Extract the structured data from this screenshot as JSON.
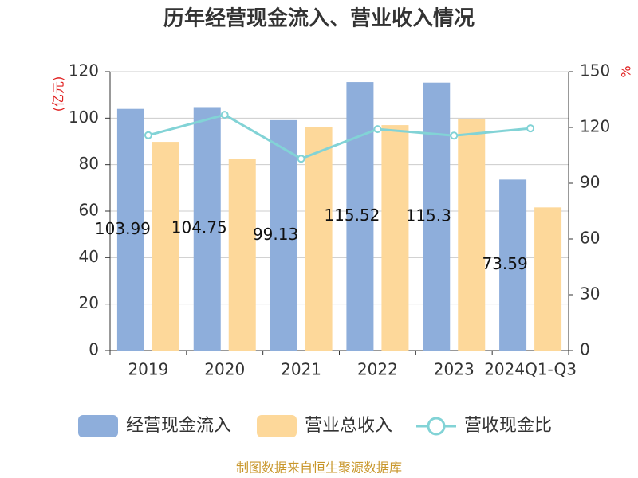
{
  "chart_data": {
    "type": "bar-line",
    "title": "历年经营现金流入、营业收入情况",
    "y_label": "(亿元)",
    "y2_label": "%",
    "source": "制图数据来自恒生聚源数据库",
    "categories": [
      "2019",
      "2020",
      "2021",
      "2022",
      "2023",
      "2024Q1-Q3"
    ],
    "series": [
      {
        "name": "经营现金流入",
        "type": "bar",
        "color": "#8eaedb",
        "values": [
          103.99,
          104.75,
          99.13,
          115.52,
          115.3,
          73.59
        ],
        "show_labels": true
      },
      {
        "name": "营业总收入",
        "type": "bar",
        "color": "#fdd89a",
        "values": [
          89.8,
          82.6,
          96.0,
          97.0,
          99.8,
          61.6
        ]
      },
      {
        "name": "营收现金比",
        "type": "line",
        "axis": "y2",
        "color": "#82d3d6",
        "values": [
          115.8,
          126.8,
          103.2,
          119.1,
          115.6,
          119.5
        ]
      }
    ],
    "ylim": [
      0,
      120
    ],
    "yticks": [
      0,
      20,
      40,
      60,
      80,
      100,
      120
    ],
    "y2lim": [
      0,
      150
    ],
    "y2ticks": [
      0,
      30,
      60,
      90,
      120,
      150
    ],
    "grid": true
  }
}
